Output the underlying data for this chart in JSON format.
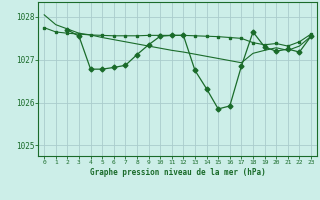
{
  "xlabel": "Graphe pression niveau de la mer (hPa)",
  "bg_color": "#cceee8",
  "grid_color": "#aacccc",
  "line_color": "#1a6b2a",
  "ylim": [
    1024.75,
    1028.35
  ],
  "xlim": [
    -0.5,
    23.5
  ],
  "yticks": [
    1025,
    1026,
    1027,
    1028
  ],
  "xticks": [
    0,
    1,
    2,
    3,
    4,
    5,
    6,
    7,
    8,
    9,
    10,
    11,
    12,
    13,
    14,
    15,
    16,
    17,
    18,
    19,
    20,
    21,
    22,
    23
  ],
  "line1_x": [
    0,
    1,
    2,
    3,
    4,
    5,
    6,
    7,
    8,
    9,
    10,
    11,
    12,
    13,
    14,
    15,
    16,
    17,
    18,
    19,
    20,
    21,
    22,
    23
  ],
  "line1_y": [
    1028.05,
    1027.82,
    1027.72,
    1027.62,
    1027.58,
    1027.52,
    1027.47,
    1027.42,
    1027.37,
    1027.32,
    1027.27,
    1027.22,
    1027.18,
    1027.13,
    1027.08,
    1027.03,
    1026.98,
    1026.93,
    1027.15,
    1027.22,
    1027.28,
    1027.22,
    1027.32,
    1027.55
  ],
  "line2_x": [
    0,
    1,
    2,
    3,
    4,
    5,
    6,
    7,
    8,
    9,
    10,
    11,
    12,
    13,
    14,
    15,
    16,
    17,
    18,
    19,
    20,
    21,
    22,
    23
  ],
  "line2_y": [
    1027.75,
    1027.65,
    1027.62,
    1027.6,
    1027.58,
    1027.57,
    1027.56,
    1027.56,
    1027.56,
    1027.57,
    1027.57,
    1027.57,
    1027.57,
    1027.56,
    1027.55,
    1027.54,
    1027.52,
    1027.5,
    1027.4,
    1027.35,
    1027.38,
    1027.32,
    1027.42,
    1027.6
  ],
  "line3_x": [
    2,
    3,
    4,
    5,
    6,
    7,
    8,
    9,
    10,
    11,
    12,
    13,
    14,
    15,
    16,
    17,
    18,
    19,
    20,
    21,
    22,
    23
  ],
  "line3_y": [
    1027.7,
    1027.55,
    1026.78,
    1026.78,
    1026.82,
    1026.87,
    1027.12,
    1027.35,
    1027.55,
    1027.57,
    1027.57,
    1026.75,
    1026.32,
    1025.85,
    1025.92,
    1026.85,
    1027.65,
    1027.3,
    1027.2,
    1027.25,
    1027.18,
    1027.55
  ]
}
